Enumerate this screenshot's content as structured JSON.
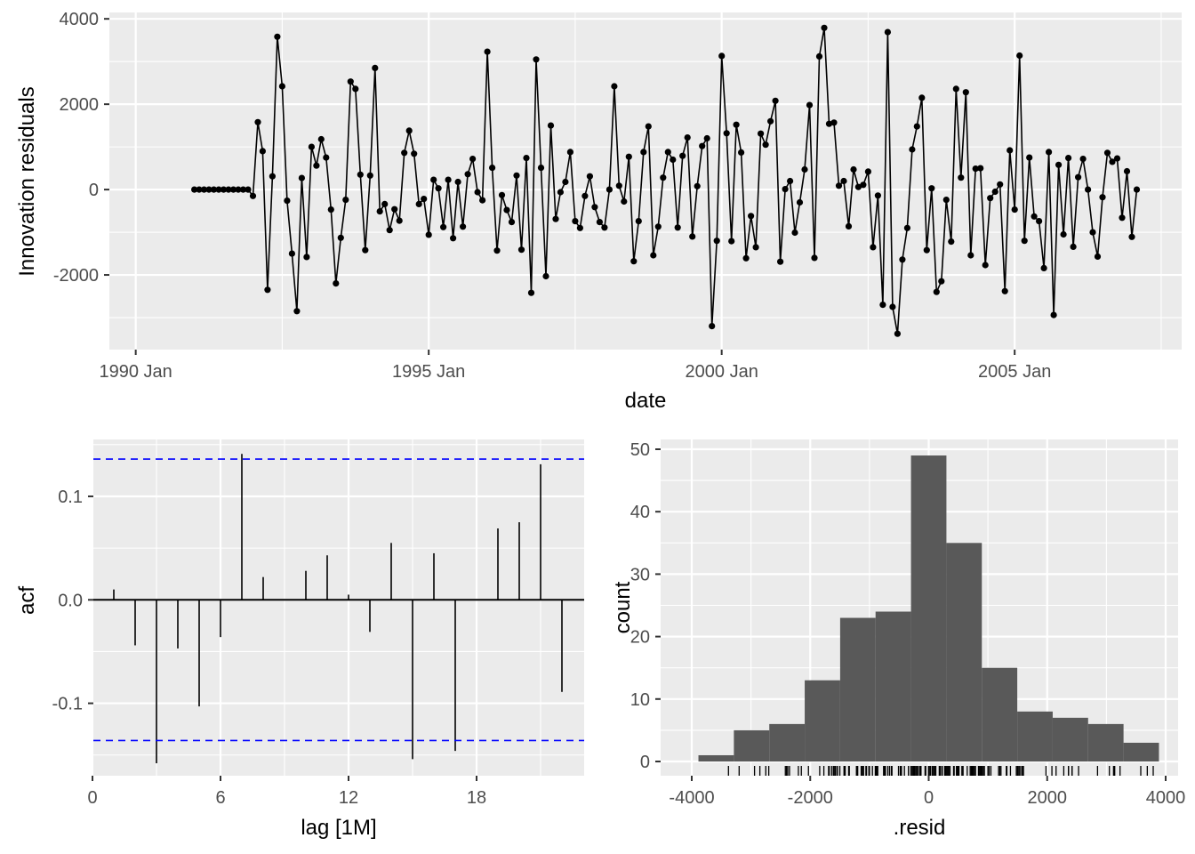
{
  "colors": {
    "panel_bg": "#ebebeb",
    "grid": "#ffffff",
    "line": "#000000",
    "ci_line": "#0000ff",
    "bar_fill": "#595959",
    "tick_text": "#4d4d4d"
  },
  "chart_data": [
    {
      "type": "line",
      "title": "",
      "xlabel": "date",
      "ylabel": "Innovation residuals",
      "x_start": "1991 Jan",
      "x_frequency": "monthly",
      "x_tick_labels": [
        "1990 Jan",
        "1995 Jan",
        "2000 Jan",
        "2005 Jan"
      ],
      "x_tick_years": [
        1990,
        1995,
        2000,
        2005
      ],
      "xlim_years": [
        1989.55,
        2007.85
      ],
      "y_tick_labels": [
        "-2000",
        "0",
        "2000",
        "4000"
      ],
      "y_ticks": [
        -2000,
        0,
        2000,
        4000
      ],
      "ylim": [
        -3750,
        4150
      ],
      "markers": true,
      "values": [
        0,
        0,
        0,
        0,
        0,
        0,
        0,
        0,
        0,
        0,
        0,
        0,
        -150,
        1580,
        900,
        -2350,
        310,
        3580,
        2420,
        -260,
        -1500,
        -2850,
        270,
        -1580,
        1000,
        560,
        1180,
        750,
        -470,
        -2200,
        -1130,
        -240,
        2530,
        2360,
        350,
        -1420,
        330,
        2850,
        -510,
        -340,
        -950,
        -460,
        -730,
        860,
        1380,
        840,
        -340,
        -220,
        -1060,
        230,
        30,
        -880,
        230,
        -1140,
        180,
        -870,
        360,
        720,
        -60,
        -250,
        3230,
        510,
        -1430,
        -130,
        -480,
        -760,
        330,
        -1410,
        740,
        -2420,
        3050,
        510,
        -2030,
        1500,
        -690,
        -60,
        180,
        880,
        -740,
        -900,
        -150,
        310,
        -410,
        -760,
        -890,
        0,
        2420,
        90,
        -280,
        770,
        -1680,
        -740,
        880,
        1480,
        -1540,
        -870,
        280,
        880,
        700,
        -890,
        790,
        1220,
        -1100,
        80,
        1020,
        1200,
        -3200,
        -1200,
        3130,
        1320,
        -1210,
        1520,
        870,
        -1610,
        -620,
        -1350,
        1310,
        1050,
        1600,
        2080,
        -1690,
        10,
        200,
        -1010,
        -300,
        470,
        1980,
        -1600,
        3120,
        3790,
        1540,
        1570,
        90,
        200,
        -860,
        470,
        60,
        110,
        420,
        -1350,
        -140,
        -2700,
        3690,
        -2750,
        -3380,
        -1640,
        -900,
        940,
        1480,
        2150,
        -1420,
        30,
        -2400,
        -2150,
        -240,
        -1220,
        2360,
        280,
        2280,
        -1540,
        490,
        500,
        -1770,
        -200,
        -50,
        120,
        -2380,
        920,
        -470,
        3140,
        -1200,
        750,
        -630,
        -740,
        -1840,
        880,
        -2940,
        580,
        -1050,
        740,
        -1340,
        290,
        720,
        0,
        -1000,
        -1570,
        -180,
        860,
        650,
        730,
        -660,
        430,
        -1110,
        0
      ]
    },
    {
      "type": "bar",
      "subtype": "acf",
      "xlabel": "lag [1M]",
      "ylabel": "acf",
      "x_tick_labels": [
        "0",
        "6",
        "12",
        "18"
      ],
      "x_ticks": [
        0,
        6,
        12,
        18
      ],
      "xlim": [
        0,
        22.9
      ],
      "y_tick_labels": [
        "-0.1",
        "0.0",
        "0.1"
      ],
      "y_ticks": [
        -0.1,
        0.0,
        0.1
      ],
      "ylim": [
        -0.17,
        0.155
      ],
      "lags": [
        1,
        2,
        3,
        4,
        5,
        6,
        7,
        8,
        9,
        10,
        11,
        12,
        13,
        14,
        15,
        16,
        17,
        18,
        19,
        20,
        21,
        22
      ],
      "values": [
        0.01,
        -0.044,
        -0.158,
        -0.047,
        -0.103,
        -0.036,
        0.141,
        0.022,
        0.0,
        0.028,
        0.043,
        0.005,
        -0.031,
        0.055,
        -0.154,
        0.045,
        -0.146,
        0.0,
        0.069,
        0.075,
        0.131,
        -0.089
      ],
      "confidence_bound": 0.136
    },
    {
      "type": "bar",
      "subtype": "histogram",
      "xlabel": ".resid",
      "ylabel": "count",
      "x_tick_labels": [
        "-4000",
        "-2000",
        "0",
        "2000",
        "4000"
      ],
      "x_ticks": [
        -4000,
        -2000,
        0,
        2000,
        4000
      ],
      "xlim": [
        -4310,
        4270
      ],
      "y_tick_labels": [
        "0",
        "10",
        "20",
        "30",
        "40",
        "50"
      ],
      "y_ticks": [
        0,
        10,
        20,
        30,
        40,
        50
      ],
      "ylim": [
        -2.4,
        51.2
      ],
      "bin_edges": [
        -3887,
        -3289,
        -2691,
        -2093,
        -1495,
        -897,
        -299,
        299,
        897,
        1495,
        2093,
        2691,
        3289,
        3887
      ],
      "counts": [
        1,
        5,
        6,
        13,
        23,
        24,
        49,
        35,
        15,
        8,
        7,
        6,
        3
      ],
      "rug": true
    }
  ]
}
